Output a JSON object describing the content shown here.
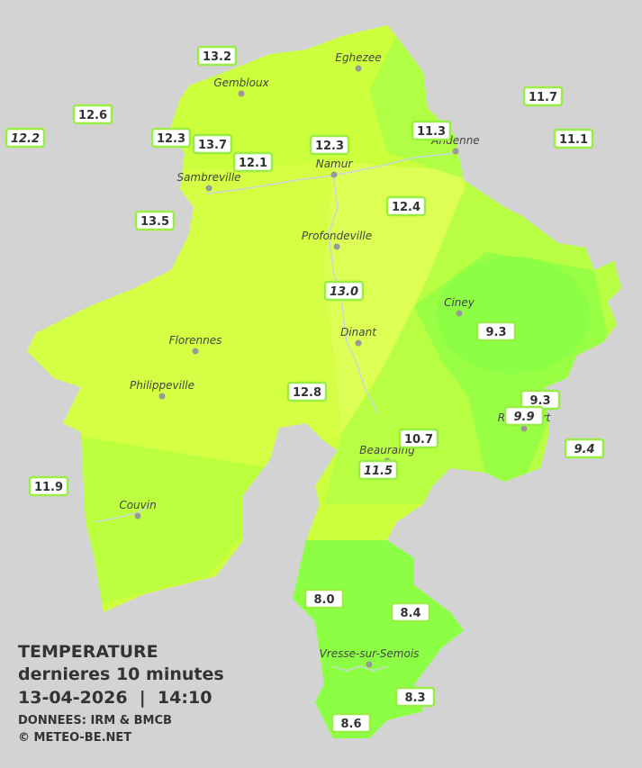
{
  "legend": {
    "title": "TEMPERATURE",
    "subtitle": "dernieres 10 minutes",
    "datetime": "13-04-2026  |  14:10",
    "source": "DONNEES: IRM & BMCB",
    "copyright": "© METEO-BE.NET"
  },
  "cities": [
    "Eghezee",
    "Gembloux",
    "Andenne",
    "Namur",
    "Sambreville",
    "Profondeville",
    "Ciney",
    "Dinant",
    "Florennes",
    "Philippeville",
    "Rochefort",
    "Beauraing",
    "Couvin",
    "Vresse-sur-Semois"
  ],
  "stations": [
    {
      "label": "13.2"
    },
    {
      "label": "12.6"
    },
    {
      "label": "12.2",
      "italic": true
    },
    {
      "label": "12.3"
    },
    {
      "label": "13.7"
    },
    {
      "label": "12.1"
    },
    {
      "label": "12.3"
    },
    {
      "label": "11.3"
    },
    {
      "label": "11.7"
    },
    {
      "label": "11.1"
    },
    {
      "label": "13.5"
    },
    {
      "label": "12.4"
    },
    {
      "label": "13.0",
      "italic": true
    },
    {
      "label": "9.3"
    },
    {
      "label": "12.8"
    },
    {
      "label": "9.3"
    },
    {
      "label": "9.9",
      "italic": true
    },
    {
      "label": "10.7"
    },
    {
      "label": "11.5",
      "italic": true
    },
    {
      "label": "9.4",
      "italic": true
    },
    {
      "label": "11.9"
    },
    {
      "label": "8.0"
    },
    {
      "label": "8.4"
    },
    {
      "label": "8.3"
    },
    {
      "label": "8.6"
    }
  ]
}
